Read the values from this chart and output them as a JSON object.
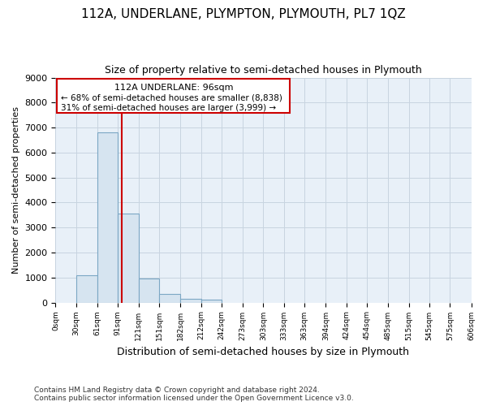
{
  "title": "112A, UNDERLANE, PLYMPTON, PLYMOUTH, PL7 1QZ",
  "subtitle": "Size of property relative to semi-detached houses in Plymouth",
  "xlabel": "Distribution of semi-detached houses by size in Plymouth",
  "ylabel": "Number of semi-detached properties",
  "footer_line1": "Contains HM Land Registry data © Crown copyright and database right 2024.",
  "footer_line2": "Contains public sector information licensed under the Open Government Licence v3.0.",
  "annotation_title": "112A UNDERLANE: 96sqm",
  "annotation_line1": "← 68% of semi-detached houses are smaller (8,838)",
  "annotation_line2": "31% of semi-detached houses are larger (3,999) →",
  "property_size": 96,
  "bar_edges": [
    0,
    30,
    61,
    91,
    121,
    151,
    182,
    212,
    242,
    273,
    303,
    333,
    363,
    394,
    424,
    454,
    485,
    515,
    545,
    575,
    606
  ],
  "bar_heights": [
    0,
    1100,
    6800,
    3550,
    950,
    340,
    150,
    100,
    0,
    0,
    0,
    0,
    0,
    0,
    0,
    0,
    0,
    0,
    0,
    0
  ],
  "bar_color": "#d6e4f0",
  "bar_edge_color": "#7ba7c4",
  "red_line_color": "#cc0000",
  "annotation_box_color": "#cc0000",
  "grid_color": "#c8d4e0",
  "background_color": "#e8f0f8",
  "ylim": [
    0,
    9000
  ],
  "yticks": [
    0,
    1000,
    2000,
    3000,
    4000,
    5000,
    6000,
    7000,
    8000,
    9000
  ],
  "x_labels": [
    "0sqm",
    "30sqm",
    "61sqm",
    "91sqm",
    "121sqm",
    "151sqm",
    "182sqm",
    "212sqm",
    "242sqm",
    "273sqm",
    "303sqm",
    "333sqm",
    "363sqm",
    "394sqm",
    "424sqm",
    "454sqm",
    "485sqm",
    "515sqm",
    "545sqm",
    "575sqm",
    "606sqm"
  ]
}
